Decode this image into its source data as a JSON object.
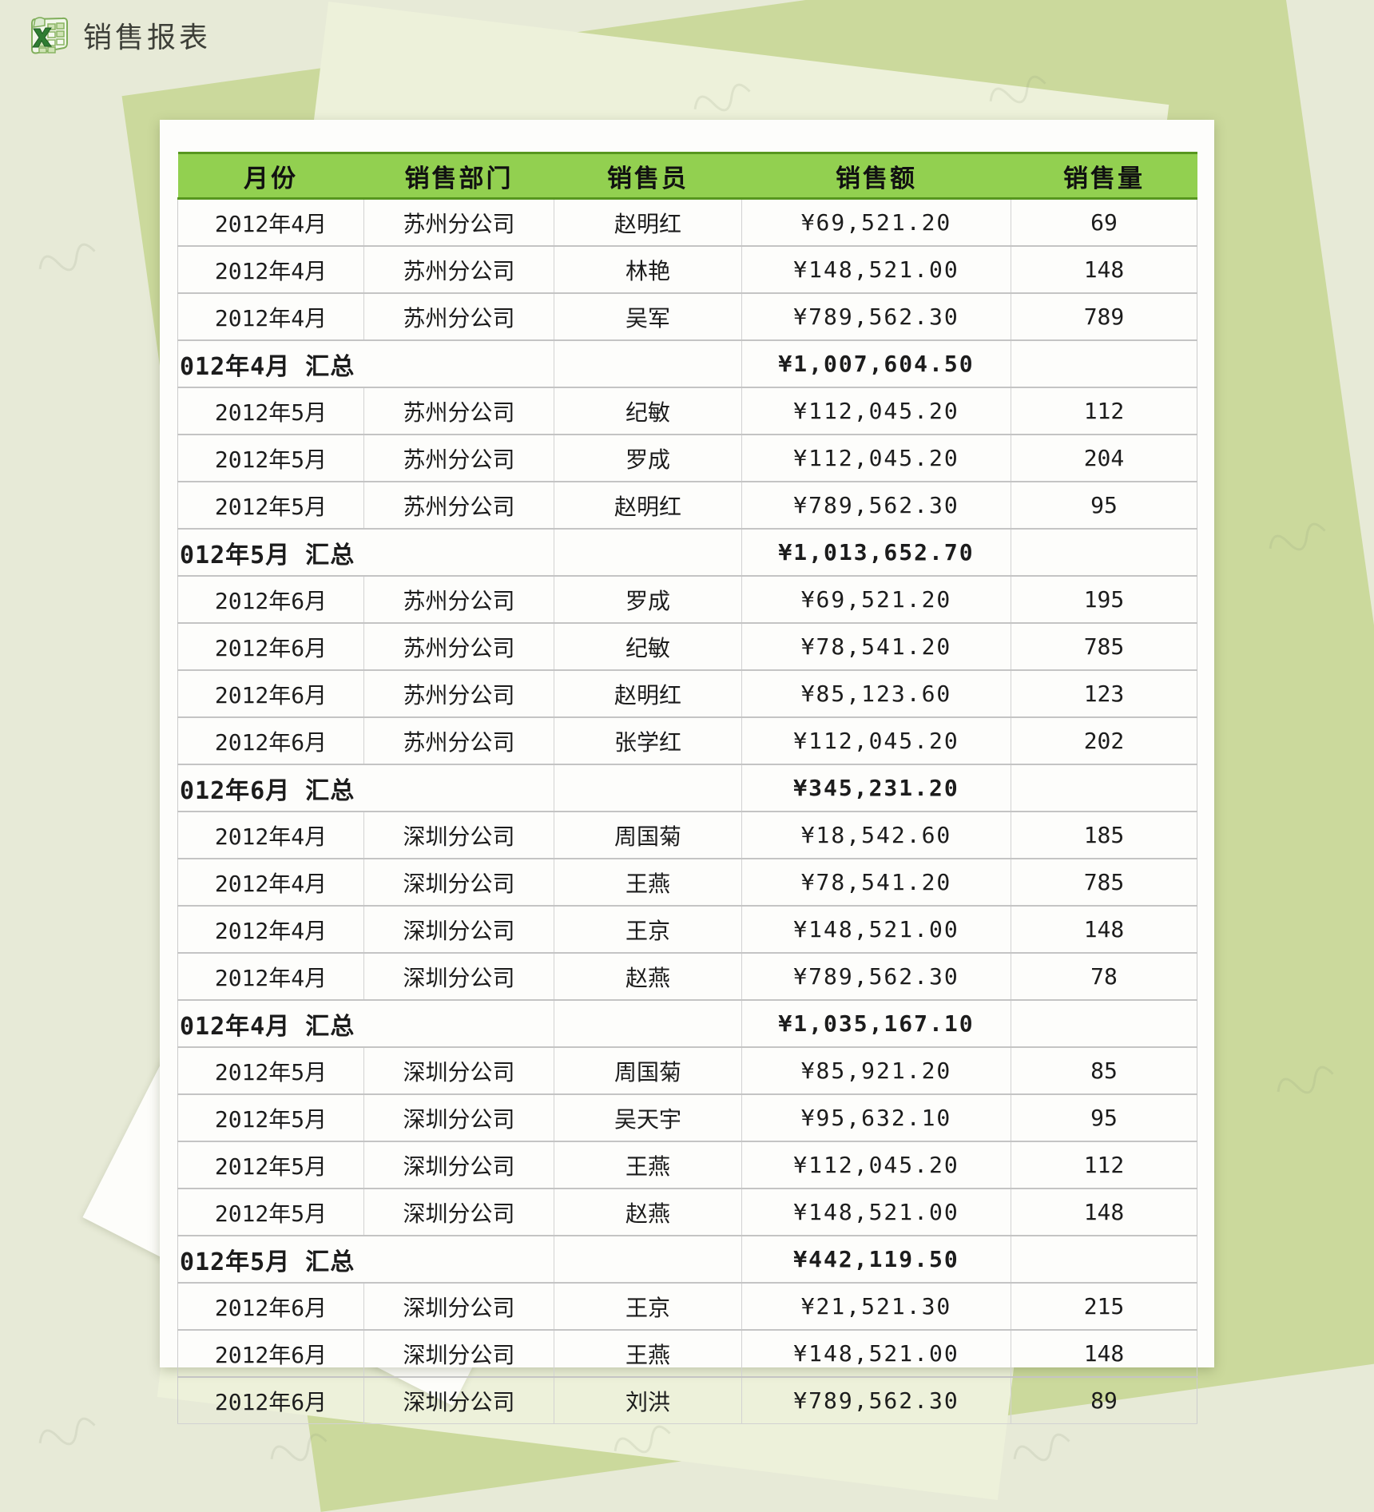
{
  "page": {
    "title": "销售报表"
  },
  "icon": {
    "name": "excel-icon"
  },
  "colors": {
    "page_background": "#e7ead7",
    "shape_dark_green": "#cbd99c",
    "shape_light_green": "#edf1da",
    "card_white": "#fdfdfb",
    "header_green": "#92d050",
    "header_border_green": "#57961f",
    "grid_line": "#cccccc",
    "text": "#1c1c1c"
  },
  "table": {
    "headers": [
      "月份",
      "销售部门",
      "销售员",
      "销售额",
      "销售量"
    ],
    "rows": [
      {
        "type": "data",
        "month": "2012年4月",
        "dept": "苏州分公司",
        "person": "赵明红",
        "amount": "¥69,521.20",
        "qty": "69"
      },
      {
        "type": "data",
        "month": "2012年4月",
        "dept": "苏州分公司",
        "person": "林艳",
        "amount": "¥148,521.00",
        "qty": "148"
      },
      {
        "type": "data",
        "month": "2012年4月",
        "dept": "苏州分公司",
        "person": "吴军",
        "amount": "¥789,562.30",
        "qty": "789"
      },
      {
        "type": "summary",
        "label": "012年4月 汇总",
        "amount": "¥1,007,604.50"
      },
      {
        "type": "data",
        "month": "2012年5月",
        "dept": "苏州分公司",
        "person": "纪敏",
        "amount": "¥112,045.20",
        "qty": "112"
      },
      {
        "type": "data",
        "month": "2012年5月",
        "dept": "苏州分公司",
        "person": "罗成",
        "amount": "¥112,045.20",
        "qty": "204"
      },
      {
        "type": "data",
        "month": "2012年5月",
        "dept": "苏州分公司",
        "person": "赵明红",
        "amount": "¥789,562.30",
        "qty": "95"
      },
      {
        "type": "summary",
        "label": "012年5月 汇总",
        "amount": "¥1,013,652.70"
      },
      {
        "type": "data",
        "month": "2012年6月",
        "dept": "苏州分公司",
        "person": "罗成",
        "amount": "¥69,521.20",
        "qty": "195"
      },
      {
        "type": "data",
        "month": "2012年6月",
        "dept": "苏州分公司",
        "person": "纪敏",
        "amount": "¥78,541.20",
        "qty": "785"
      },
      {
        "type": "data",
        "month": "2012年6月",
        "dept": "苏州分公司",
        "person": "赵明红",
        "amount": "¥85,123.60",
        "qty": "123"
      },
      {
        "type": "data",
        "month": "2012年6月",
        "dept": "苏州分公司",
        "person": "张学红",
        "amount": "¥112,045.20",
        "qty": "202"
      },
      {
        "type": "summary",
        "label": "012年6月 汇总",
        "amount": "¥345,231.20"
      },
      {
        "type": "data",
        "month": "2012年4月",
        "dept": "深圳分公司",
        "person": "周国菊",
        "amount": "¥18,542.60",
        "qty": "185"
      },
      {
        "type": "data",
        "month": "2012年4月",
        "dept": "深圳分公司",
        "person": "王燕",
        "amount": "¥78,541.20",
        "qty": "785"
      },
      {
        "type": "data",
        "month": "2012年4月",
        "dept": "深圳分公司",
        "person": "王京",
        "amount": "¥148,521.00",
        "qty": "148"
      },
      {
        "type": "data",
        "month": "2012年4月",
        "dept": "深圳分公司",
        "person": "赵燕",
        "amount": "¥789,562.30",
        "qty": "78"
      },
      {
        "type": "summary",
        "label": "012年4月 汇总",
        "amount": "¥1,035,167.10"
      },
      {
        "type": "data",
        "month": "2012年5月",
        "dept": "深圳分公司",
        "person": "周国菊",
        "amount": "¥85,921.20",
        "qty": "85"
      },
      {
        "type": "data",
        "month": "2012年5月",
        "dept": "深圳分公司",
        "person": "吴天宇",
        "amount": "¥95,632.10",
        "qty": "95"
      },
      {
        "type": "data",
        "month": "2012年5月",
        "dept": "深圳分公司",
        "person": "王燕",
        "amount": "¥112,045.20",
        "qty": "112"
      },
      {
        "type": "data",
        "month": "2012年5月",
        "dept": "深圳分公司",
        "person": "赵燕",
        "amount": "¥148,521.00",
        "qty": "148"
      },
      {
        "type": "summary",
        "label": "012年5月 汇总",
        "amount": "¥442,119.50"
      },
      {
        "type": "data",
        "month": "2012年6月",
        "dept": "深圳分公司",
        "person": "王京",
        "amount": "¥21,521.30",
        "qty": "215"
      },
      {
        "type": "data",
        "month": "2012年6月",
        "dept": "深圳分公司",
        "person": "王燕",
        "amount": "¥148,521.00",
        "qty": "148"
      },
      {
        "type": "data",
        "month": "2012年6月",
        "dept": "深圳分公司",
        "person": "刘洪",
        "amount": "¥789,562.30",
        "qty": "89"
      }
    ]
  }
}
